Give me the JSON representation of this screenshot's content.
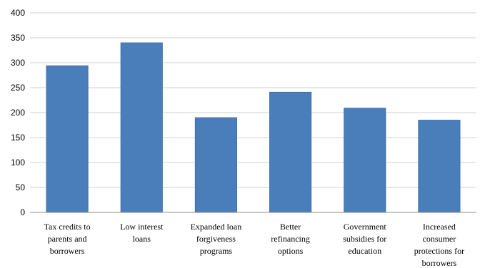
{
  "chart_data": {
    "type": "bar",
    "title": "",
    "xlabel": "",
    "ylabel": "",
    "categories": [
      [
        "Tax credits to",
        "parents and",
        "borrowers"
      ],
      [
        "Low interest",
        "loans"
      ],
      [
        "Expanded loan",
        "forgiveness",
        "programs"
      ],
      [
        "Better",
        "refinancing",
        "options"
      ],
      [
        "Government",
        "subsidies for",
        "education"
      ],
      [
        "Increased",
        "consumer",
        "protections for",
        "borrowers"
      ]
    ],
    "values": [
      294,
      340,
      190,
      241,
      209,
      185
    ],
    "ylim": [
      0,
      400
    ],
    "yticks": [
      0,
      50,
      100,
      150,
      200,
      250,
      300,
      350,
      400
    ],
    "grid": true,
    "legend": "none",
    "colors": {
      "bar": "#4a7ebb",
      "bar_edge": "#3b6aa6"
    }
  }
}
